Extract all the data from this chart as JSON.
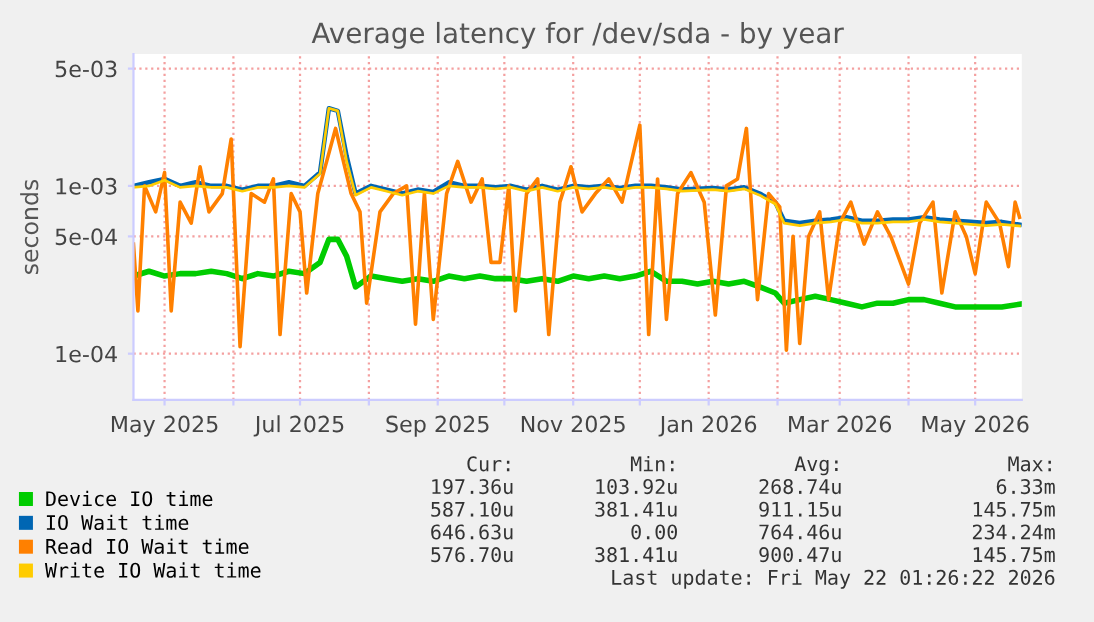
{
  "chart_data": {
    "type": "line",
    "title": "Average latency for /dev/sda - by year",
    "ylabel": "seconds",
    "log": "y",
    "grid": true,
    "legend": "bottom",
    "xlim": [
      "2025-04-17",
      "2026-05-22"
    ],
    "ylim": [
      5.3e-05,
      0.0061
    ],
    "yticks": [
      {
        "value": 0.0001,
        "label": "1e-04"
      },
      {
        "value": 0.0005,
        "label": "5e-04"
      },
      {
        "value": 0.001,
        "label": "1e-03"
      },
      {
        "value": 0.005,
        "label": "5e-03"
      }
    ],
    "xticks": [
      {
        "value": "2025-05-01",
        "label": "May 2025"
      },
      {
        "value": "2025-06-01",
        "label": null
      },
      {
        "value": "2025-07-01",
        "label": "Jul 2025"
      },
      {
        "value": "2025-08-01",
        "label": null
      },
      {
        "value": "2025-09-01",
        "label": "Sep 2025"
      },
      {
        "value": "2025-10-01",
        "label": null
      },
      {
        "value": "2025-11-01",
        "label": "Nov 2025"
      },
      {
        "value": "2025-12-01",
        "label": null
      },
      {
        "value": "2026-01-01",
        "label": "Jan 2026"
      },
      {
        "value": "2026-02-01",
        "label": null
      },
      {
        "value": "2026-03-01",
        "label": "Mar 2026"
      },
      {
        "value": "2026-04-01",
        "label": null
      },
      {
        "value": "2026-05-01",
        "label": "May 2026"
      }
    ],
    "x": [
      "2025-04-17",
      "2025-04-24",
      "2025-05-01",
      "2025-05-08",
      "2025-05-15",
      "2025-05-22",
      "2025-05-29",
      "2025-06-05",
      "2025-06-12",
      "2025-06-19",
      "2025-06-26",
      "2025-07-03",
      "2025-07-10",
      "2025-07-14",
      "2025-07-18",
      "2025-07-22",
      "2025-07-26",
      "2025-08-02",
      "2025-08-09",
      "2025-08-16",
      "2025-08-23",
      "2025-08-30",
      "2025-09-06",
      "2025-09-13",
      "2025-09-20",
      "2025-09-27",
      "2025-10-04",
      "2025-10-11",
      "2025-10-18",
      "2025-10-25",
      "2025-11-01",
      "2025-11-08",
      "2025-11-15",
      "2025-11-22",
      "2025-11-29",
      "2025-12-06",
      "2025-12-13",
      "2025-12-20",
      "2025-12-27",
      "2026-01-03",
      "2026-01-10",
      "2026-01-17",
      "2026-01-24",
      "2026-01-31",
      "2026-02-04",
      "2026-02-11",
      "2026-02-18",
      "2026-02-25",
      "2026-03-04",
      "2026-03-11",
      "2026-03-18",
      "2026-03-25",
      "2026-04-01",
      "2026-04-08",
      "2026-04-15",
      "2026-04-22",
      "2026-04-29",
      "2026-05-06",
      "2026-05-13",
      "2026-05-21"
    ],
    "series": [
      {
        "name": "Device IO time",
        "color": "#00cc00",
        "values": [
          0.00029,
          0.00031,
          0.00029,
          0.0003,
          0.0003,
          0.00031,
          0.0003,
          0.00028,
          0.0003,
          0.00029,
          0.00031,
          0.0003,
          0.00035,
          0.00048,
          0.00048,
          0.00038,
          0.00025,
          0.00029,
          0.00028,
          0.00027,
          0.00028,
          0.00027,
          0.00029,
          0.00028,
          0.00029,
          0.00028,
          0.00028,
          0.00027,
          0.00028,
          0.00027,
          0.00029,
          0.00028,
          0.00029,
          0.00028,
          0.00029,
          0.00031,
          0.00027,
          0.00027,
          0.00026,
          0.00027,
          0.00026,
          0.00027,
          0.00025,
          0.00023,
          0.0002,
          0.00021,
          0.00022,
          0.00021,
          0.0002,
          0.00019,
          0.0002,
          0.0002,
          0.00021,
          0.00021,
          0.0002,
          0.00019,
          0.00019,
          0.00019,
          0.00019,
          0.000197
        ]
      },
      {
        "name": "IO Wait time",
        "color": "#0066b3",
        "values": [
          0.001,
          0.00105,
          0.0011,
          0.001,
          0.00105,
          0.001,
          0.001,
          0.00095,
          0.001,
          0.001,
          0.00105,
          0.001,
          0.0012,
          0.0029,
          0.0028,
          0.0015,
          0.0009,
          0.001,
          0.00095,
          0.0009,
          0.00095,
          0.00092,
          0.00105,
          0.001,
          0.001,
          0.00098,
          0.001,
          0.00095,
          0.001,
          0.00095,
          0.001,
          0.00098,
          0.001,
          0.00097,
          0.001,
          0.001,
          0.00098,
          0.00095,
          0.00096,
          0.00097,
          0.00095,
          0.00098,
          0.0009,
          0.0008,
          0.00062,
          0.0006,
          0.00062,
          0.00063,
          0.00065,
          0.00062,
          0.00062,
          0.00063,
          0.00063,
          0.00065,
          0.00063,
          0.00062,
          0.00061,
          0.0006,
          0.00061,
          0.000587
        ]
      },
      {
        "name": "Read IO Wait time",
        "color": "#ff8000",
        "x": [
          "2025-04-17",
          "2025-04-19",
          "2025-04-22",
          "2025-04-27",
          "2025-05-01",
          "2025-05-04",
          "2025-05-08",
          "2025-05-13",
          "2025-05-17",
          "2025-05-21",
          "2025-05-27",
          "2025-05-31",
          "2025-06-04",
          "2025-06-09",
          "2025-06-15",
          "2025-06-19",
          "2025-06-22",
          "2025-06-27",
          "2025-07-01",
          "2025-07-04",
          "2025-07-09",
          "2025-07-13",
          "2025-07-17",
          "2025-07-20",
          "2025-07-24",
          "2025-07-28",
          "2025-07-31",
          "2025-08-06",
          "2025-08-12",
          "2025-08-18",
          "2025-08-22",
          "2025-08-26",
          "2025-08-30",
          "2025-09-05",
          "2025-09-10",
          "2025-09-16",
          "2025-09-21",
          "2025-09-25",
          "2025-09-29",
          "2025-10-03",
          "2025-10-06",
          "2025-10-11",
          "2025-10-16",
          "2025-10-21",
          "2025-10-26",
          "2025-10-31",
          "2025-11-05",
          "2025-11-11",
          "2025-11-17",
          "2025-11-23",
          "2025-12-01",
          "2025-12-05",
          "2025-12-09",
          "2025-12-13",
          "2025-12-18",
          "2025-12-24",
          "2025-12-30",
          "2026-01-04",
          "2026-01-09",
          "2026-01-14",
          "2026-01-18",
          "2026-01-23",
          "2026-01-28",
          "2026-02-02",
          "2026-02-05",
          "2026-02-08",
          "2026-02-11",
          "2026-02-15",
          "2026-02-20",
          "2026-02-24",
          "2026-03-01",
          "2026-03-06",
          "2026-03-12",
          "2026-03-18",
          "2026-03-24",
          "2026-04-01",
          "2026-04-06",
          "2026-04-12",
          "2026-04-16",
          "2026-04-22",
          "2026-04-27",
          "2026-05-01",
          "2026-05-06",
          "2026-05-12",
          "2026-05-16",
          "2026-05-19",
          "2026-05-21"
        ],
        "values": [
          0.00045,
          0.00018,
          0.001,
          0.0007,
          0.0012,
          0.00018,
          0.0008,
          0.0006,
          0.0013,
          0.0007,
          0.0009,
          0.0019,
          0.00011,
          0.0009,
          0.0008,
          0.0011,
          0.00013,
          0.0009,
          0.0007,
          0.00023,
          0.0009,
          0.0014,
          0.0022,
          0.0015,
          0.0009,
          0.0007,
          0.0002,
          0.0007,
          0.0009,
          0.001,
          0.00015,
          0.0009,
          0.00016,
          0.0009,
          0.0014,
          0.0008,
          0.0011,
          0.00035,
          0.00035,
          0.001,
          0.00018,
          0.0009,
          0.0011,
          0.00013,
          0.0008,
          0.0013,
          0.0007,
          0.0009,
          0.0011,
          0.0008,
          0.0023,
          0.00013,
          0.0011,
          0.00016,
          0.0009,
          0.0012,
          0.0008,
          0.00017,
          0.001,
          0.0011,
          0.0022,
          0.00021,
          0.0009,
          0.00075,
          0.000105,
          0.0005,
          0.000115,
          0.0005,
          0.0007,
          0.00021,
          0.0006,
          0.0008,
          0.00045,
          0.0007,
          0.0005,
          0.00026,
          0.0006,
          0.0008,
          0.00023,
          0.0007,
          0.0005,
          0.0003,
          0.0008,
          0.0006,
          0.00033,
          0.0008,
          0.00065
        ]
      },
      {
        "name": "Write IO Wait time",
        "color": "#ffcc00",
        "values": [
          0.00098,
          0.001,
          0.00108,
          0.00098,
          0.001,
          0.00098,
          0.00098,
          0.00093,
          0.00098,
          0.00098,
          0.001,
          0.00098,
          0.00118,
          0.0029,
          0.0028,
          0.0014,
          0.00088,
          0.00098,
          0.00093,
          0.00088,
          0.00093,
          0.0009,
          0.001,
          0.00098,
          0.00098,
          0.00096,
          0.00098,
          0.00093,
          0.00098,
          0.00093,
          0.00098,
          0.00096,
          0.00098,
          0.00095,
          0.00098,
          0.00098,
          0.00096,
          0.00093,
          0.00094,
          0.00095,
          0.00093,
          0.00096,
          0.00088,
          0.00078,
          0.0006,
          0.00058,
          0.0006,
          0.00061,
          0.00063,
          0.0006,
          0.0006,
          0.00061,
          0.00061,
          0.00063,
          0.00061,
          0.0006,
          0.00059,
          0.00058,
          0.00059,
          0.000577
        ]
      }
    ],
    "annotations": [
      "Cur:",
      "Min:",
      "Avg:",
      "Max:",
      "197.36u",
      "103.92u",
      "268.74u",
      "6.33m",
      "587.10u",
      "381.41u",
      "911.15u",
      "145.75m",
      "646.63u",
      "0.00",
      "764.46u",
      "234.24m",
      "576.70u",
      "381.41u",
      "900.47u",
      "145.75m",
      "Last update: Fri May 22 01:26:22 2026"
    ]
  }
}
